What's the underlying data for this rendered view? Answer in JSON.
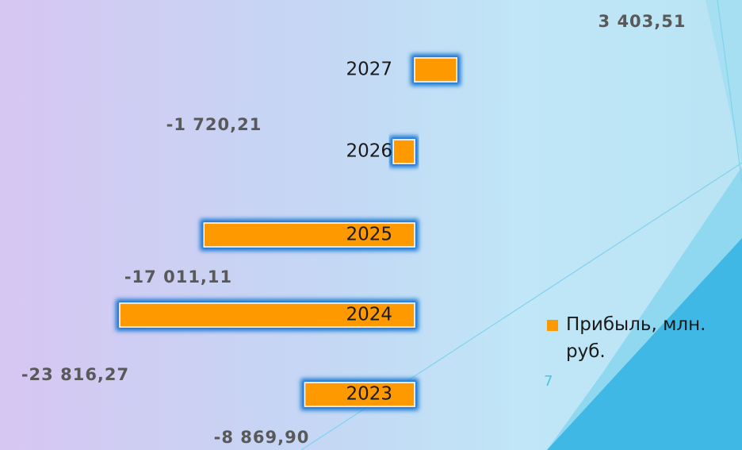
{
  "page_number": "7",
  "chart_data": {
    "type": "hbar",
    "categories": [
      "2023",
      "2024",
      "2025",
      "2026",
      "2027"
    ],
    "series": [
      {
        "name": "Прибыль, млн. руб.",
        "color": "#ff9900",
        "values": [
          -8869.9,
          -23816.27,
          -17011.11,
          -1720.21,
          3403.51
        ],
        "value_labels": [
          "-8 869,90",
          "-23 816,27",
          "-17 011,11",
          "-1 720,21",
          "3 403,51"
        ]
      }
    ]
  }
}
